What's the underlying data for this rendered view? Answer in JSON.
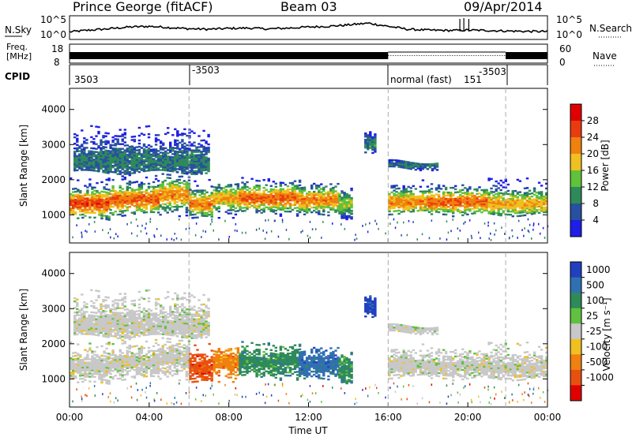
{
  "header": {
    "station": "Prince George (fitACF)",
    "beam": "Beam 03",
    "date": "09/Apr/2014"
  },
  "noise_panel": {
    "left_label": "N.Sky",
    "right_label": "N.Search",
    "left_ticks": [
      "10^5",
      "10^0"
    ],
    "right_ticks": [
      "10^5",
      "10^0"
    ]
  },
  "freq_panel": {
    "left_label_1": "Freq.",
    "left_label_2": "[MHz]",
    "right_label": "Nave",
    "left_ticks": [
      "18",
      "8"
    ],
    "right_ticks": [
      "60",
      "0"
    ]
  },
  "cpid": {
    "label": "CPID",
    "segments": [
      {
        "label": "3503",
        "start": 0
      },
      {
        "label": "-3503",
        "start": 6.0
      },
      {
        "label": "normal (fast)",
        "start": 16.0
      },
      {
        "label": "151",
        "start": 16.0
      },
      {
        "label": "-3503",
        "start": 21.9
      }
    ]
  },
  "colors": {
    "power": [
      "#1e1ee6",
      "#2850a0",
      "#2f8a5a",
      "#5fc23a",
      "#f0c020",
      "#f08010",
      "#e83c10",
      "#e00000"
    ],
    "velocity": [
      "#2040c0",
      "#3070b0",
      "#2f8a5a",
      "#60c040",
      "#c8c8c8",
      "#f0c020",
      "#f08010",
      "#e85010",
      "#e00000"
    ]
  },
  "chart_data": [
    {
      "type": "line",
      "panel": "noise",
      "ylabel": "N.Sky",
      "x": [
        0.0,
        1.0,
        2.0,
        3.0,
        4.0,
        5.0,
        6.0,
        7.0,
        8.0,
        9.0,
        10.0,
        11.0,
        12.0,
        13.0,
        14.0,
        15.0,
        16.0,
        17.0,
        18.0,
        19.0,
        20.0,
        21.0,
        22.0,
        23.0,
        24.0
      ],
      "y_frac": [
        0.3,
        0.4,
        0.48,
        0.58,
        0.62,
        0.55,
        0.48,
        0.45,
        0.5,
        0.52,
        0.47,
        0.52,
        0.58,
        0.62,
        0.7,
        0.8,
        0.62,
        0.45,
        0.4,
        0.38,
        0.4,
        0.38,
        0.35,
        0.33,
        0.32
      ]
    },
    {
      "type": "heatmap",
      "panel": "power",
      "ylabel": "Slant Range [km]",
      "xlim": [
        0,
        24
      ],
      "ylim": [
        200,
        4600
      ],
      "y_ticks": [
        1000,
        2000,
        3000,
        4000
      ],
      "colorbar_label": "Power [dB]",
      "colorbar_ticks": [
        4,
        8,
        12,
        16,
        20,
        24,
        28
      ],
      "colorbar_range": [
        0,
        32
      ]
    },
    {
      "type": "heatmap",
      "panel": "velocity",
      "ylabel": "Slant Range [km]",
      "xlabel": "Time UT",
      "xlim": [
        0,
        24
      ],
      "ylim": [
        200,
        4600
      ],
      "y_ticks": [
        1000,
        2000,
        3000,
        4000
      ],
      "x_ticks": [
        "00:00",
        "04:00",
        "08:00",
        "12:00",
        "16:00",
        "20:00",
        "00:00"
      ],
      "colorbar_label": "Velocity [m s⁻¹]",
      "colorbar_ticks": [
        "1000",
        "500",
        "100",
        "25",
        "-25",
        "-100",
        "-500",
        "-1000"
      ]
    }
  ],
  "regions": [
    {
      "t0": 0.0,
      "t1": 2.0,
      "r0": 850,
      "r1": 2050,
      "core": 1300,
      "sigma": 280,
      "peak": 26,
      "vel": 4
    },
    {
      "t0": 2.0,
      "t1": 4.5,
      "r0": 1000,
      "r1": 2150,
      "core": 1420,
      "sigma": 280,
      "peak": 24,
      "vel": 4
    },
    {
      "t0": 4.5,
      "t1": 6.0,
      "r0": 1000,
      "r1": 2350,
      "core": 1550,
      "sigma": 300,
      "peak": 22,
      "vel": 4
    },
    {
      "t0": 6.0,
      "t1": 7.2,
      "r0": 850,
      "r1": 2050,
      "core": 1300,
      "sigma": 260,
      "peak": 22,
      "vel": 7
    },
    {
      "t0": 7.2,
      "t1": 8.5,
      "r0": 900,
      "r1": 1900,
      "core": 1450,
      "sigma": 260,
      "peak": 20,
      "vel": 6
    },
    {
      "t0": 8.5,
      "t1": 11.5,
      "r0": 1000,
      "r1": 2000,
      "core": 1450,
      "sigma": 260,
      "peak": 24,
      "vel": 2
    },
    {
      "t0": 11.5,
      "t1": 13.5,
      "r0": 950,
      "r1": 1900,
      "core": 1400,
      "sigma": 260,
      "peak": 22,
      "vel": 1
    },
    {
      "t0": 13.5,
      "t1": 14.2,
      "r0": 900,
      "r1": 1800,
      "core": 1300,
      "sigma": 250,
      "peak": 16,
      "vel": 2
    },
    {
      "t0": 14.8,
      "t1": 15.3,
      "r0": 2700,
      "r1": 3300,
      "core": 3000,
      "sigma": 200,
      "peak": 10,
      "vel": 0
    },
    {
      "t0": 16.0,
      "t1": 18.0,
      "r0": 1050,
      "r1": 1950,
      "core": 1350,
      "sigma": 250,
      "peak": 22,
      "vel": 4
    },
    {
      "t0": 18.0,
      "t1": 21.0,
      "r0": 1000,
      "r1": 1900,
      "core": 1350,
      "sigma": 250,
      "peak": 24,
      "vel": 4
    },
    {
      "t0": 21.0,
      "t1": 24.0,
      "r0": 1000,
      "r1": 2050,
      "core": 1300,
      "sigma": 260,
      "peak": 20,
      "vel": 4
    },
    {
      "t0": 16.0,
      "t1": 18.5,
      "r0": 2300,
      "r1": 2500,
      "core": 2400,
      "sigma": 120,
      "peak": 8,
      "vel": 4
    },
    {
      "t0": 0.2,
      "t1": 7.0,
      "r0": 2200,
      "r1": 3500,
      "core": 2500,
      "sigma": 400,
      "peak": 9,
      "vel": 4
    }
  ]
}
